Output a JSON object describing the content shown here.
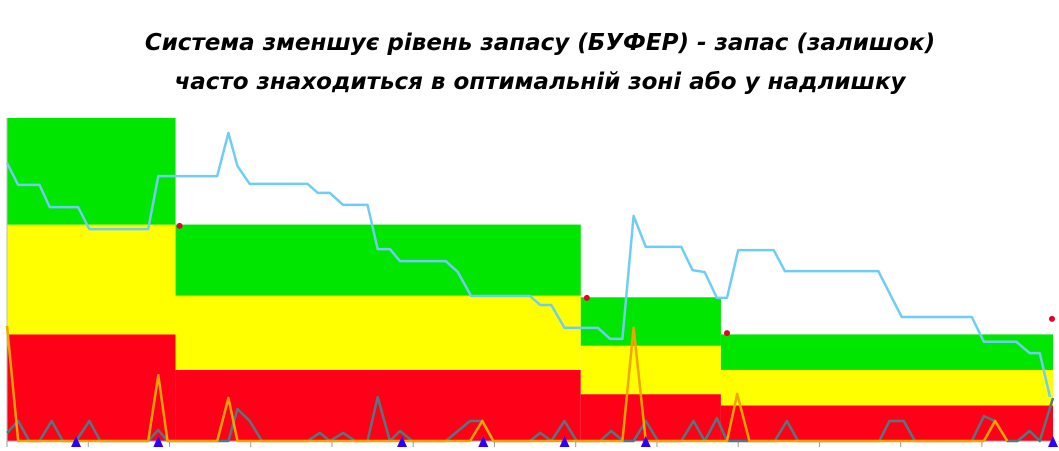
{
  "chart_data": {
    "type": "buffer",
    "title": [
      "Система зменшує рівень запасу (БУФЕР) - запас (залишок)",
      "часто знаходиться в оптимальній зоні або у надлишку"
    ],
    "xlim": [
      0,
      103
    ],
    "ylim": [
      0,
      100
    ],
    "xticks": [
      0,
      8,
      16,
      24,
      32,
      40,
      48,
      56,
      64,
      72,
      80,
      88,
      96
    ],
    "zones": {
      "x_edges": [
        0,
        16.6,
        56.5,
        70.3,
        103
      ],
      "series": [
        {
          "color": "#ff0019",
          "values": [
            33,
            22,
            14.5,
            11
          ]
        },
        {
          "color": "#ffff00",
          "values": [
            34,
            23,
            15,
            11
          ]
        },
        {
          "color": "#00e600",
          "values": [
            33,
            22,
            15,
            11
          ]
        }
      ]
    },
    "series": [
      {
        "color": "#52797f",
        "x": [
          0,
          1.1,
          2.2,
          3.2,
          4.4,
          5.5,
          6.8,
          8.1,
          9.2,
          13.9,
          14.9,
          15.8,
          21.8,
          22.7,
          23.9,
          25.1,
          29.6,
          30.8,
          31.8,
          33.1,
          34.3,
          35.5,
          36.5,
          37.7,
          38.7,
          39.9,
          43.2,
          45.6,
          46.8,
          47.9,
          51.5,
          52.5,
          53.6,
          54.9,
          56.1,
          58.4,
          59.5,
          60.7,
          61.7,
          62.9,
          64.1,
          66.4,
          67.6,
          68.7,
          69.9,
          70.9,
          75.6,
          76.8,
          77.9,
          85.9,
          86.9,
          88.3,
          89.4,
          95,
          96.2,
          97.3,
          98.5,
          99.5,
          100.7,
          101.7,
          103
        ],
        "values": [
          2.5,
          6.2,
          0,
          0,
          6.2,
          0,
          0,
          6.2,
          0,
          0,
          3.4,
          0,
          0,
          9.9,
          6.2,
          0,
          0,
          2.5,
          0,
          2.5,
          0,
          0,
          13.6,
          0,
          3.1,
          0,
          0,
          6.2,
          6.2,
          0,
          0,
          2.5,
          0,
          6.2,
          0,
          0,
          3.1,
          0,
          0,
          6.2,
          0,
          0,
          6.2,
          0,
          7.1,
          0,
          0,
          6.2,
          0,
          0,
          6.2,
          6.2,
          0,
          0,
          7.7,
          6.2,
          0,
          0,
          3.1,
          0,
          13.3
        ]
      },
      {
        "color": "#f5a300",
        "x": [
          0,
          1.1,
          13.9,
          14.9,
          15.8,
          20.7,
          21.8,
          22.7,
          45.6,
          46.8,
          47.9,
          60.6,
          61.7,
          62.9,
          70.9,
          71.9,
          73.1,
          96.2,
          97.3,
          98.5
        ],
        "values": [
          35.6,
          0,
          0,
          20.4,
          0,
          0,
          13.3,
          0,
          0,
          6.2,
          0,
          0,
          35,
          0,
          0,
          14.6,
          0,
          0,
          6.2,
          0
        ]
      },
      {
        "color": "#6fcdf5",
        "x": [
          0,
          1.1,
          3.2,
          4.2,
          7,
          8.1,
          13.9,
          14.9,
          20.7,
          21.8,
          22.7,
          23.9,
          29.6,
          30.6,
          31.8,
          33.1,
          35.5,
          36.5,
          37.7,
          38.7,
          43.2,
          44.4,
          45.7,
          51.5,
          52.5,
          53.6,
          54.9,
          58.2,
          59.4,
          60.6,
          61.7,
          62.9,
          66.4,
          67.5,
          68.7,
          69.9,
          70.9,
          72,
          75.5,
          76.6,
          85.8,
          88.1,
          95,
          96.2,
          99.4,
          100.7,
          101.7,
          102.7
        ],
        "values": [
          86.1,
          79.3,
          79.3,
          72.4,
          72.4,
          65.6,
          65.6,
          82,
          82,
          95.4,
          85.1,
          79.6,
          79.6,
          76.8,
          76.8,
          73.1,
          73.1,
          59.4,
          59.4,
          55.7,
          55.7,
          52.3,
          44.9,
          44.9,
          42.1,
          42.1,
          35,
          35,
          31.6,
          31.6,
          69.7,
          60.1,
          60.1,
          52.9,
          52.3,
          44.3,
          44.3,
          59.1,
          59.1,
          52.6,
          52.6,
          38.4,
          38.4,
          30.7,
          30.7,
          27.2,
          27.2,
          13.6
        ]
      }
    ],
    "dots": {
      "color": "#e8002a",
      "x": [
        17,
        57.1,
        70.9,
        102.9
      ],
      "values": [
        66.6,
        44.3,
        33.4,
        37.8
      ]
    },
    "triangles": {
      "color": "#2a00ff",
      "x": [
        6.8,
        14.9,
        38.9,
        46.9,
        54.9,
        62.9,
        103
      ],
      "values": [
        0,
        0,
        0,
        0,
        0,
        0,
        0
      ]
    }
  }
}
